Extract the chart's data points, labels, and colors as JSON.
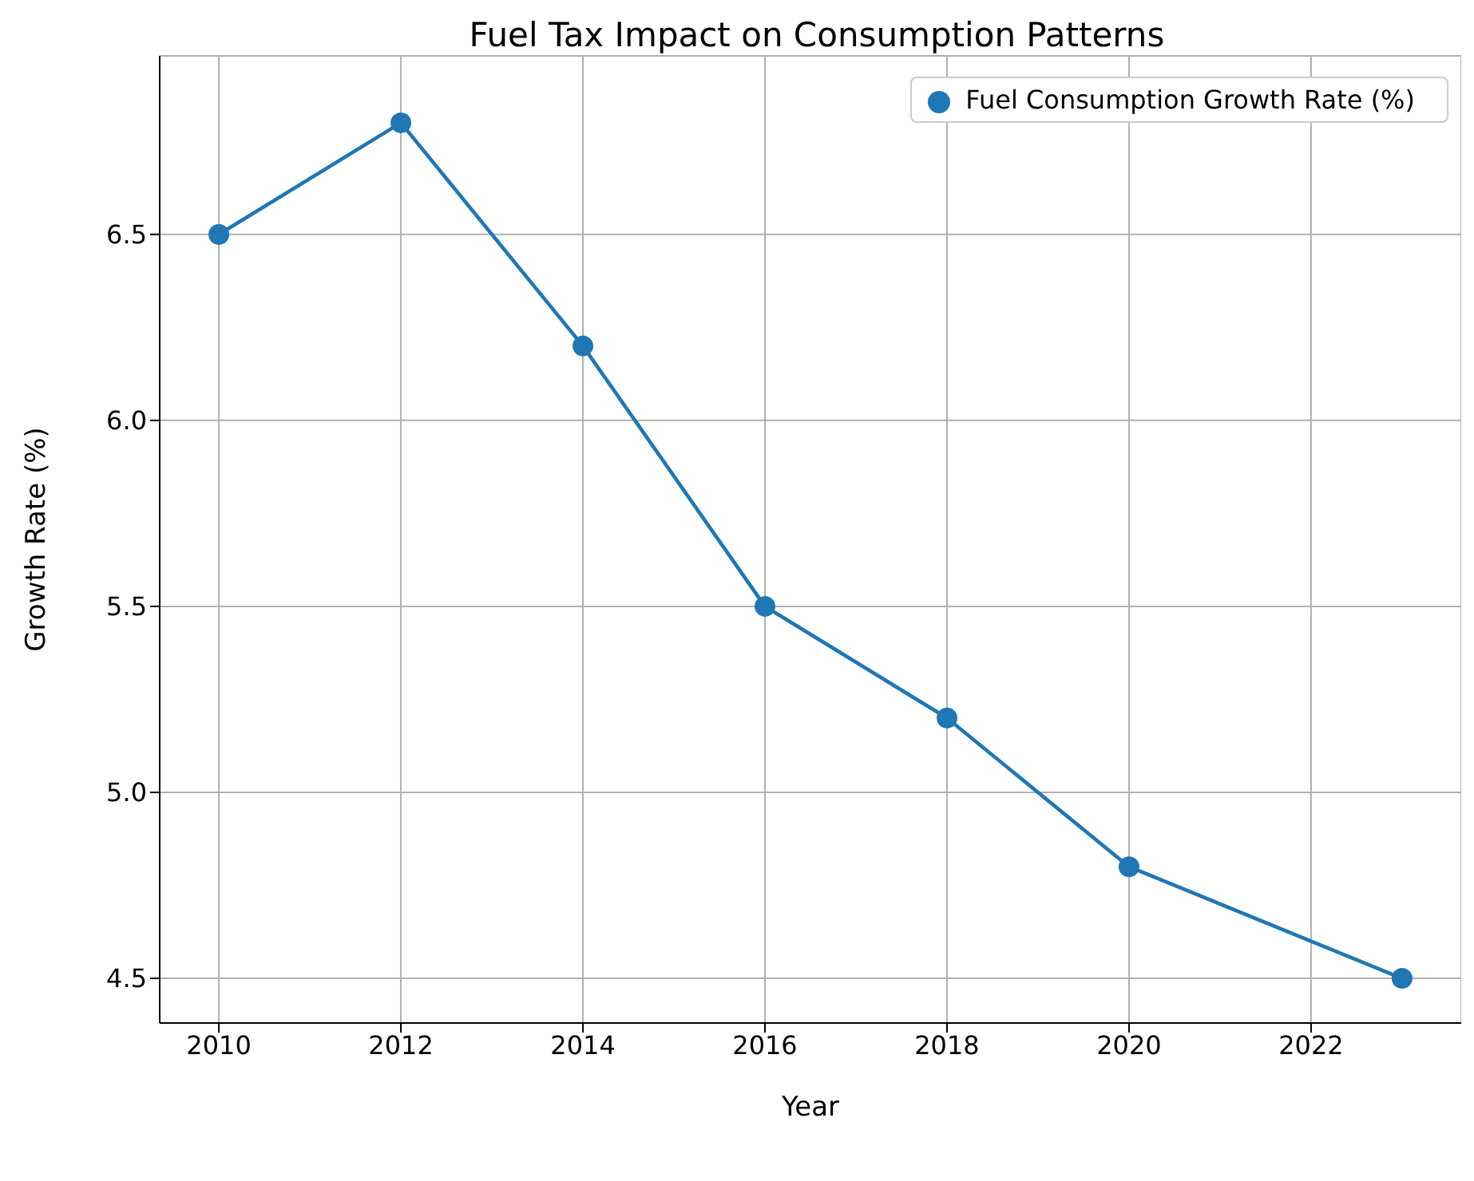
{
  "chart_data": {
    "type": "line",
    "title": "Fuel Tax Impact on Consumption Patterns",
    "xlabel": "Year",
    "ylabel": "Growth Rate (%)",
    "x": [
      2010,
      2012,
      2014,
      2016,
      2018,
      2020,
      2023
    ],
    "series": [
      {
        "name": "Fuel Consumption Growth Rate (%)",
        "color": "#1f77b4",
        "values": [
          6.5,
          6.8,
          6.2,
          5.5,
          5.2,
          4.8,
          4.5
        ]
      }
    ],
    "xlim": [
      2009.35,
      2023.65
    ],
    "xticks": [
      2010,
      2012,
      2014,
      2016,
      2018,
      2020,
      2022
    ],
    "ylim": [
      4.38,
      6.98
    ],
    "yticks": [
      {
        "value": 4.5,
        "label": "4.5"
      },
      {
        "value": 5.0,
        "label": "5.0"
      },
      {
        "value": 5.5,
        "label": "5.5"
      },
      {
        "value": 6.0,
        "label": "6.0"
      },
      {
        "value": 6.5,
        "label": "6.5"
      }
    ],
    "grid": true,
    "legend": "top right",
    "marker": "circle",
    "line_style": "solid"
  }
}
